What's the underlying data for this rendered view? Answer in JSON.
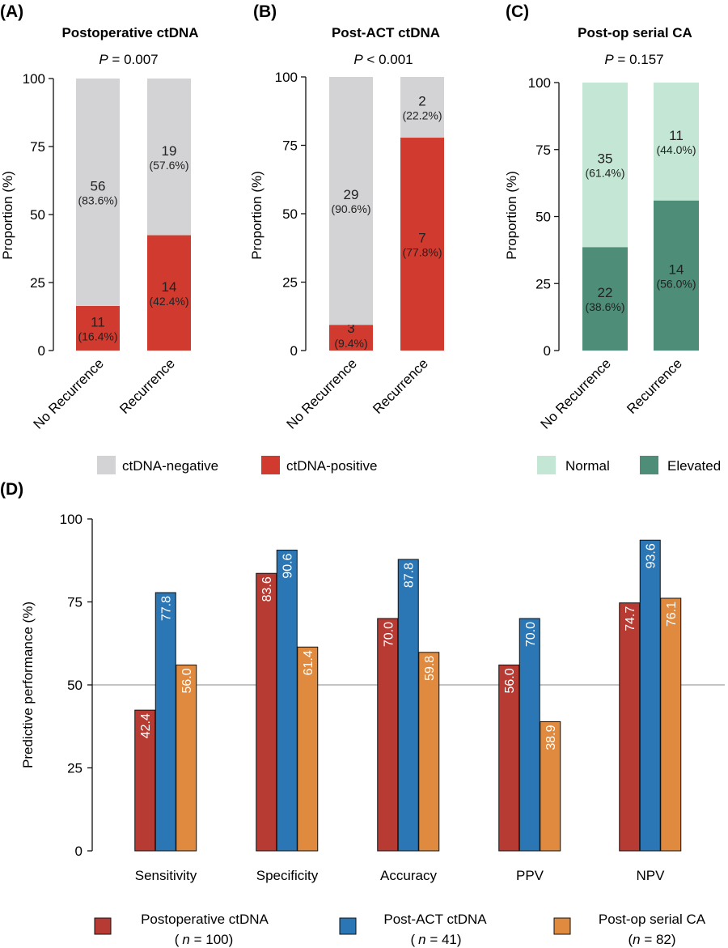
{
  "colors": {
    "neg": "#d3d3d5",
    "pos": "#d13a2e",
    "normal": "#c4e7d5",
    "elevated": "#4e8d78",
    "postop": "#b83b33",
    "postact": "#2b77b6",
    "serialca": "#df8a3e",
    "refline": "#b0b0b0"
  },
  "chart_data": [
    {
      "type": "bar",
      "stacked": true,
      "panel_label": "(A)",
      "title": "Postoperative ctDNA",
      "p_prefix": "P",
      "p_text": " = 0.007",
      "ylabel": "Proportion (%)",
      "ylim": [
        0,
        100
      ],
      "yticks": [
        "0",
        "25",
        "50",
        "75",
        "100"
      ],
      "categories": [
        "No Recurrence",
        "Recurrence"
      ],
      "series": [
        {
          "name": "ctDNA-positive",
          "values": [
            16.4,
            42.4
          ],
          "counts": [
            "11",
            "14"
          ],
          "pcts": [
            "(16.4%)",
            "(42.4%)"
          ],
          "color_key": "pos"
        },
        {
          "name": "ctDNA-negative",
          "values": [
            83.6,
            57.6
          ],
          "counts": [
            "56",
            "19"
          ],
          "pcts": [
            "(83.6%)",
            "(57.6%)"
          ],
          "color_key": "neg"
        }
      ]
    },
    {
      "type": "bar",
      "stacked": true,
      "panel_label": "(B)",
      "title": "Post-ACT ctDNA",
      "p_prefix": "P",
      "p_text": " < 0.001",
      "ylabel": "Proportion (%)",
      "ylim": [
        0,
        100
      ],
      "yticks": [
        "0",
        "25",
        "50",
        "75",
        "100"
      ],
      "categories": [
        "No Recurrence",
        "Recurrence"
      ],
      "series": [
        {
          "name": "ctDNA-positive",
          "values": [
            9.4,
            77.8
          ],
          "counts": [
            "3",
            "7"
          ],
          "pcts": [
            "(9.4%)",
            "(77.8%)"
          ],
          "color_key": "pos"
        },
        {
          "name": "ctDNA-negative",
          "values": [
            90.6,
            22.2
          ],
          "counts": [
            "29",
            "2"
          ],
          "pcts": [
            "(90.6%)",
            "(22.2%)"
          ],
          "color_key": "neg"
        }
      ]
    },
    {
      "type": "bar",
      "stacked": true,
      "panel_label": "(C)",
      "title": "Post-op serial CA",
      "p_prefix": "P",
      "p_text": " = 0.157",
      "ylabel": "Proportion (%)",
      "ylim": [
        0,
        100
      ],
      "yticks": [
        "0",
        "25",
        "50",
        "75",
        "100"
      ],
      "categories": [
        "No Recurrence",
        "Recurrence"
      ],
      "series": [
        {
          "name": "Elevated",
          "values": [
            38.6,
            56.0
          ],
          "counts": [
            "22",
            "14"
          ],
          "pcts": [
            "(38.6%)",
            "(56.0%)"
          ],
          "color_key": "elevated"
        },
        {
          "name": "Normal",
          "values": [
            61.4,
            44.0
          ],
          "counts": [
            "35",
            "11"
          ],
          "pcts": [
            "(61.4%)",
            "(44.0%)"
          ],
          "color_key": "normal"
        }
      ]
    },
    {
      "type": "bar",
      "grouped": true,
      "panel_label": "(D)",
      "ylabel": "Predictive performance (%)",
      "ylim": [
        0,
        100
      ],
      "yticks": [
        "0",
        "25",
        "50",
        "75",
        "100"
      ],
      "reference_line": 50,
      "categories": [
        "Sensitivity",
        "Specificity",
        "Accuracy",
        "PPV",
        "NPV"
      ],
      "series": [
        {
          "name": "Postoperative ctDNA",
          "n_label": "n",
          "n_value": " = 100)",
          "values": [
            42.4,
            83.6,
            70.0,
            56.0,
            74.7
          ],
          "labels": [
            "42.4",
            "83.6",
            "70.0",
            "56.0",
            "74.7"
          ],
          "color_key": "postop"
        },
        {
          "name": "Post-ACT ctDNA",
          "n_label": "n",
          "n_value": " = 41)",
          "values": [
            77.8,
            90.6,
            87.8,
            70.0,
            93.6
          ],
          "labels": [
            "77.8",
            "90.6",
            "87.8",
            "70.0",
            "93.6"
          ],
          "color_key": "postact"
        },
        {
          "name": "Post-op serial CA",
          "n_label": "n",
          "n_value": " = 82)",
          "values": [
            56.0,
            61.4,
            59.8,
            38.9,
            76.1
          ],
          "labels": [
            "56.0",
            "61.4",
            "59.8",
            "38.9",
            "76.1"
          ],
          "color_key": "serialca"
        }
      ]
    }
  ],
  "legends": {
    "ab": [
      "ctDNA-negative",
      "ctDNA-positive"
    ],
    "c": [
      "Normal",
      "Elevated"
    ]
  }
}
